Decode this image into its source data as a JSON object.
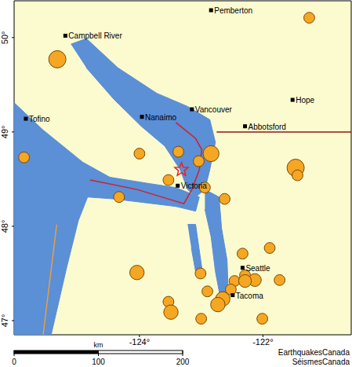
{
  "chart_data": {
    "type": "scatter",
    "xlim": [
      -126.03,
      -120.57
    ],
    "ylim": [
      46.85,
      50.39
    ],
    "xticks": [
      {
        "value": -124,
        "label": "-124°"
      },
      {
        "value": -122,
        "label": "-122°"
      }
    ],
    "yticks": [
      {
        "value": 47,
        "label": "47°"
      },
      {
        "value": 48,
        "label": "48°"
      },
      {
        "value": 49,
        "label": "49°"
      },
      {
        "value": 50,
        "label": "50°"
      }
    ],
    "water": {
      "color": "#5b8fd6",
      "polygons": [
        {
          "x": [
            -126.03,
            -125.56,
            -124.92,
            -124.48,
            -123.91,
            -123.41,
            -123.03,
            -123.09,
            -123.41,
            -123.91,
            -124.42,
            -124.84,
            -124.99,
            -125.18,
            -125.43,
            -126.03
          ],
          "y": [
            49.31,
            49.02,
            48.68,
            48.52,
            48.46,
            48.41,
            48.31,
            48.16,
            48.21,
            48.25,
            48.29,
            48.31,
            48.06,
            47.56,
            46.85,
            46.85
          ]
        },
        {
          "x": [
            -125.11,
            -124.86,
            -124.35,
            -123.72,
            -123.22,
            -122.86,
            -122.77,
            -122.86,
            -122.94,
            -123.09,
            -123.22,
            -123.34,
            -123.59,
            -123.97,
            -124.42,
            -124.86
          ],
          "y": [
            49.93,
            49.99,
            49.68,
            49.41,
            49.27,
            49.13,
            48.89,
            48.6,
            48.39,
            48.31,
            48.39,
            48.6,
            48.85,
            49.06,
            49.35,
            49.68
          ]
        },
        {
          "x": [
            -122.94,
            -122.71,
            -122.67,
            -122.58,
            -122.56,
            -122.68,
            -122.77,
            -122.84,
            -122.94
          ],
          "y": [
            48.39,
            48.31,
            47.98,
            47.64,
            47.27,
            47.21,
            47.52,
            47.89,
            48.18
          ]
        },
        {
          "x": [
            -123.22,
            -123.09,
            -122.99,
            -123.09,
            -123.16
          ],
          "y": [
            48.02,
            48.02,
            47.56,
            47.52,
            47.77
          ]
        }
      ]
    },
    "lines": [
      {
        "color": "#8b1a1a",
        "x": [
          -122.75,
          -120.57
        ],
        "y": [
          49.0,
          49.0
        ]
      },
      {
        "color": "#d0202a",
        "x": [
          -124.8,
          -124.04,
          -123.28,
          -123.15,
          -123.03,
          -122.99,
          -123.09,
          -123.41
        ],
        "y": [
          48.49,
          48.39,
          48.24,
          48.39,
          48.6,
          48.81,
          48.93,
          49.1
        ]
      },
      {
        "color": "#e8a040",
        "x": [
          -125.34,
          -125.56
        ],
        "y": [
          48.02,
          46.85
        ]
      }
    ],
    "earthquakes": {
      "color": "#f5a623",
      "x": [
        -121.25,
        -125.33,
        -125.87,
        -124.0,
        -122.84,
        -123.37,
        -123.04,
        -123.53,
        -122.94,
        -124.33,
        -122.62,
        -121.47,
        -121.44,
        -121.89,
        -122.33,
        -123.01,
        -124.04,
        -122.29,
        -122.46,
        -122.13,
        -122.29,
        -121.73,
        -122.52,
        -122.9,
        -122.65,
        -122.73,
        -123.53,
        -123.49,
        -123.0,
        -122.01
      ],
      "y": [
        50.21,
        49.77,
        48.73,
        48.77,
        48.77,
        48.79,
        48.69,
        48.49,
        48.41,
        48.31,
        48.29,
        48.62,
        48.54,
        47.77,
        47.71,
        47.5,
        47.51,
        47.48,
        47.42,
        47.43,
        47.42,
        47.43,
        47.33,
        47.31,
        47.23,
        47.17,
        47.2,
        47.09,
        47.02,
        47.02
      ],
      "sizes": [
        3.0,
        4.2,
        3.0,
        3.0,
        3.9,
        3.0,
        3.0,
        3.0,
        3.0,
        3.0,
        3.0,
        4.2,
        3.0,
        3.0,
        3.0,
        3.0,
        3.6,
        3.0,
        3.0,
        3.3,
        3.3,
        3.0,
        3.0,
        3.0,
        3.6,
        3.6,
        3.0,
        3.6,
        3.0,
        3.0
      ]
    },
    "cities": {
      "color": "#000000",
      "labels": [
        "Pemberton",
        "Campbell River",
        "Hope",
        "Vancouver",
        "Nanaimo",
        "Tofino",
        "Abbotsford",
        "Victoria",
        "Seattle",
        "Tacoma"
      ],
      "x": [
        -122.84,
        -125.2,
        -121.52,
        -123.15,
        -123.96,
        -125.84,
        -122.29,
        -123.38,
        -122.33,
        -122.49
      ],
      "y": [
        50.29,
        50.02,
        49.34,
        49.24,
        49.16,
        49.14,
        49.06,
        48.43,
        47.56,
        47.27
      ]
    },
    "epicentre": {
      "color": "#e8232a",
      "x": [
        -123.32
      ],
      "y": [
        48.6
      ]
    },
    "scale_bar": {
      "label": "km",
      "ticks": [
        0,
        100,
        200
      ]
    },
    "credits": [
      "EarthquakesCanada",
      "SéismesCanada"
    ]
  }
}
